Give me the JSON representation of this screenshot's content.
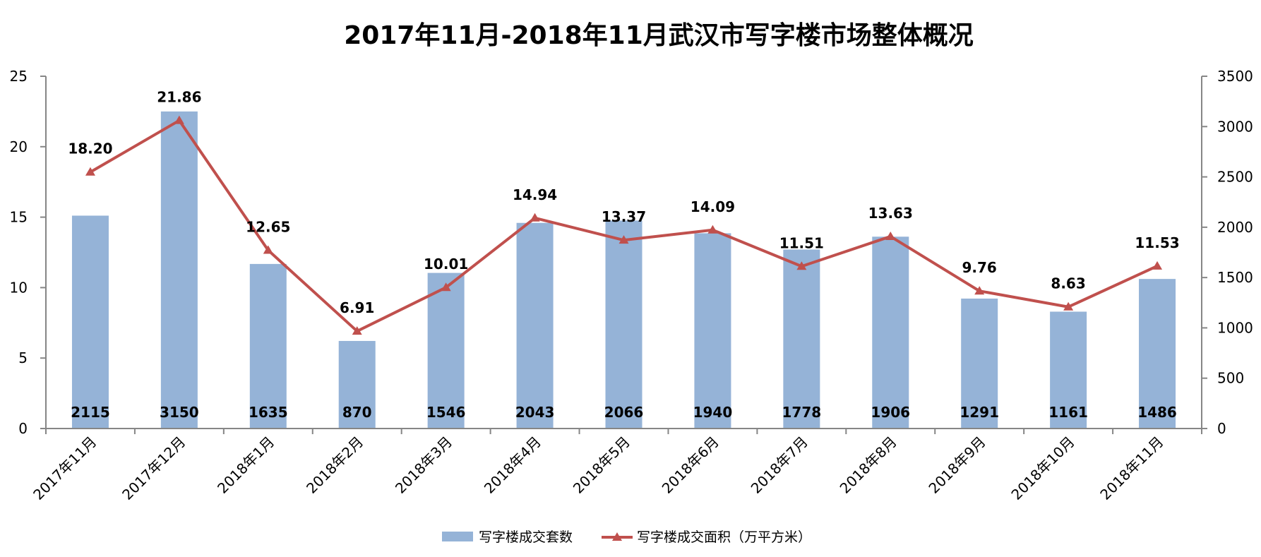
{
  "chart_data": {
    "type": "bar+line",
    "title": "2017年11月-2018年11月武汉市写字楼市场整体概况",
    "categories": [
      "2017年11月",
      "2017年12月",
      "2018年1月",
      "2018年2月",
      "2018年3月",
      "2018年4月",
      "2018年5月",
      "2018年6月",
      "2018年7月",
      "2018年8月",
      "2018年9月",
      "2018年10月",
      "2018年11月"
    ],
    "series": [
      {
        "name": "写字楼成交套数",
        "type": "bar",
        "axis": "right",
        "color": "#95B3D7",
        "values": [
          2115,
          3150,
          1635,
          870,
          1546,
          2043,
          2066,
          1940,
          1778,
          1906,
          1291,
          1161,
          1486
        ]
      },
      {
        "name": "写字楼成交面积（万平方米）",
        "type": "line",
        "axis": "left",
        "color": "#C0504D",
        "marker": "triangle",
        "values": [
          18.2,
          21.86,
          12.65,
          6.91,
          10.01,
          14.94,
          13.37,
          14.09,
          11.51,
          13.63,
          9.76,
          8.63,
          11.53
        ]
      }
    ],
    "left_axis": {
      "range": [
        0,
        25
      ],
      "ticks": [
        "0",
        "5",
        "10",
        "15",
        "20",
        "25"
      ]
    },
    "right_axis": {
      "range": [
        0,
        3500
      ],
      "ticks": [
        "0",
        "500",
        "1000",
        "1500",
        "2000",
        "2500",
        "3000",
        "3500"
      ]
    },
    "grid": false,
    "legend_placement": "bottom"
  }
}
